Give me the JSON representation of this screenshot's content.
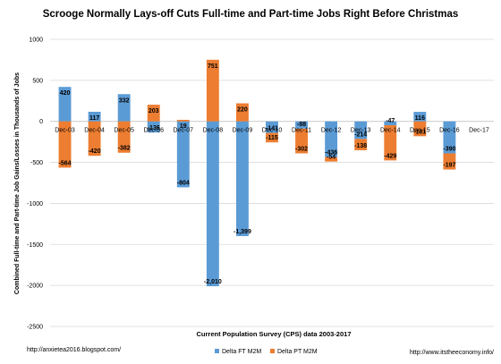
{
  "chart_data": {
    "type": "bar",
    "title": "Scrooge Normally Lays-off Cuts Full-time and Part-time Jobs Right Before Christmas",
    "ylabel": "Combined Full-time and Part-time Job Gains/Losses in Thousands of Jobs",
    "xlabel": "Current Population Survey (CPS) data 2003-2017",
    "ylim": [
      -2500,
      1000
    ],
    "yticks": [
      "1000",
      "500",
      "0",
      "-500",
      "-1000",
      "-1500",
      "-2000",
      "-2500"
    ],
    "grid": true,
    "categories": [
      "Dec-03",
      "Dec-04",
      "Dec-05",
      "Dec-06",
      "Dec-07",
      "Dec-08",
      "Dec-09",
      "Dec-10",
      "Dec-11",
      "Dec-12",
      "Dec-13",
      "Dec-14",
      "Dec-15",
      "Dec-16",
      "Dec-17"
    ],
    "series": [
      {
        "name": "Delta FT M2M",
        "color": "#5B9BD5",
        "values": [
          420,
          117,
          332,
          -136,
          -804,
          -2010,
          -1399,
          -141,
          -88,
          -436,
          -214,
          -47,
          116,
          -390,
          null
        ],
        "labels": [
          "420",
          "117",
          "332",
          "-136",
          "-804",
          "-2,010",
          "-1,399",
          "-141",
          "-88",
          "-436",
          "-214",
          "-47",
          "116",
          "-390",
          ""
        ]
      },
      {
        "name": "Delta PT M2M",
        "color": "#ED7D31",
        "values": [
          -564,
          -420,
          -382,
          203,
          19,
          751,
          220,
          -115,
          -302,
          -54,
          -138,
          -429,
          -181,
          -197,
          null
        ],
        "labels": [
          "-564",
          "-420",
          "-382",
          "203",
          "19",
          "751",
          "220",
          "-115",
          "-302",
          "-54",
          "-138",
          "-429",
          "-181",
          "-197",
          ""
        ]
      }
    ],
    "legend": "bottom"
  },
  "footer": {
    "left": "http://anxietea2016.blogspot.com/",
    "right": "http://www.itstheeconomy.info/"
  }
}
